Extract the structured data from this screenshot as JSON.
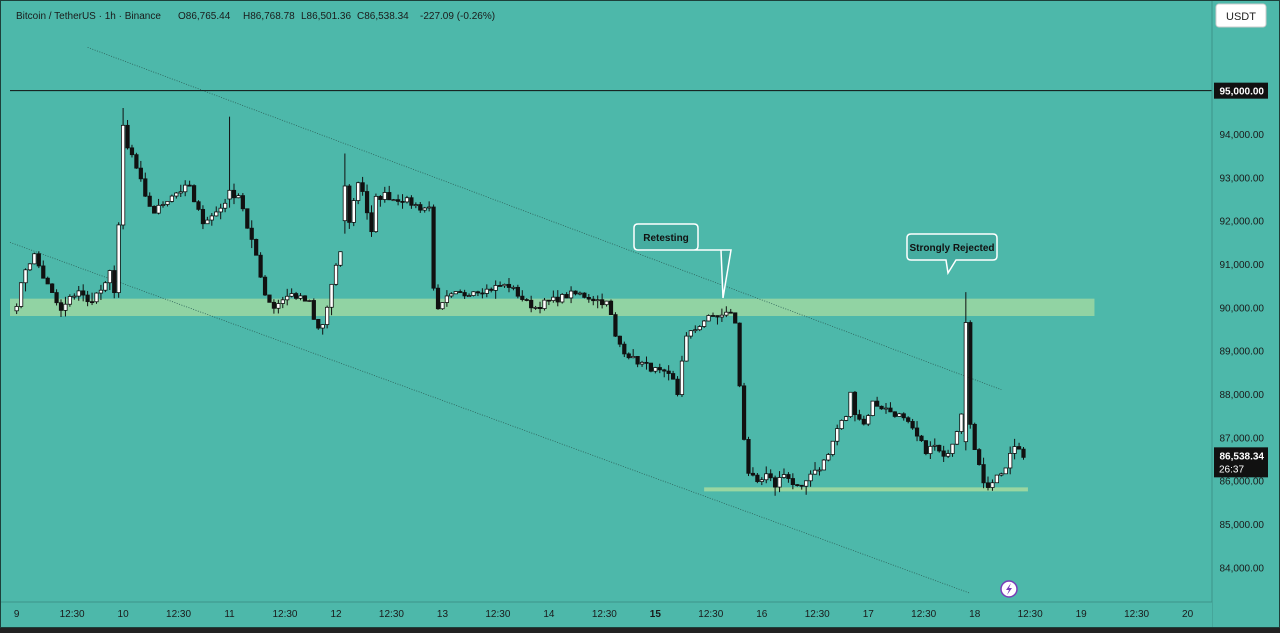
{
  "header": {
    "symbol": "Bitcoin / TetherUS",
    "interval": "1h",
    "exchange": "Binance",
    "open": "O86,765.44",
    "high": "H86,768.78",
    "low": "L86,501.36",
    "close": "C86,538.34",
    "change": "-227.09 (-0.26%)"
  },
  "currency_button": "USDT",
  "colors": {
    "background": "#4db8aa",
    "zone": "#a8dca0",
    "candle": "#111111",
    "candle_up_body": "#ffffff",
    "axis_bg": "#4db8aa",
    "callout_bg": "#45aca0"
  },
  "annotations": {
    "retesting": "Retesting",
    "strongly_rejected": "Strongly Rejected"
  },
  "price_line": {
    "value": 95000,
    "label": "95,000.00"
  },
  "last_price": {
    "value": 86538.34,
    "label": "86,538.34",
    "countdown": "26:37"
  },
  "chart_data": {
    "type": "candlestick",
    "instrument": "Bitcoin / TetherUS",
    "interval": "1h",
    "ylim": [
      83200,
      96400
    ],
    "y_ticks": [
      {
        "value": 94000,
        "label": "94,000.00"
      },
      {
        "value": 93000,
        "label": "93,000.00"
      },
      {
        "value": 92000,
        "label": "92,000.00"
      },
      {
        "value": 91000,
        "label": "91,000.00"
      },
      {
        "value": 90000,
        "label": "90,000.00"
      },
      {
        "value": 89000,
        "label": "89,000.00"
      },
      {
        "value": 88000,
        "label": "88,000.00"
      },
      {
        "value": 87000,
        "label": "87,000.00"
      },
      {
        "value": 86000,
        "label": "86,000.00"
      },
      {
        "value": 85000,
        "label": "85,000.00"
      },
      {
        "value": 84000,
        "label": "84,000.00"
      }
    ],
    "x_ticks": [
      {
        "t": 0,
        "label": "9",
        "bold": false
      },
      {
        "t": 12.5,
        "label": "12:30",
        "bold": false
      },
      {
        "t": 24,
        "label": "10",
        "bold": false
      },
      {
        "t": 36.5,
        "label": "12:30",
        "bold": false
      },
      {
        "t": 48,
        "label": "11",
        "bold": false
      },
      {
        "t": 60.5,
        "label": "12:30",
        "bold": false
      },
      {
        "t": 72,
        "label": "12",
        "bold": false
      },
      {
        "t": 84.5,
        "label": "12:30",
        "bold": false
      },
      {
        "t": 96,
        "label": "13",
        "bold": false
      },
      {
        "t": 108.5,
        "label": "12:30",
        "bold": false
      },
      {
        "t": 120,
        "label": "14",
        "bold": false
      },
      {
        "t": 132.5,
        "label": "12:30",
        "bold": false
      },
      {
        "t": 144,
        "label": "15",
        "bold": true
      },
      {
        "t": 156.5,
        "label": "12:30",
        "bold": false
      },
      {
        "t": 168,
        "label": "16",
        "bold": false
      },
      {
        "t": 180.5,
        "label": "12:30",
        "bold": false
      },
      {
        "t": 192,
        "label": "17",
        "bold": false
      },
      {
        "t": 204.5,
        "label": "12:30",
        "bold": false
      },
      {
        "t": 216,
        "label": "18",
        "bold": false
      },
      {
        "t": 228.5,
        "label": "12:30",
        "bold": false
      },
      {
        "t": 240,
        "label": "19",
        "bold": false
      },
      {
        "t": 252.5,
        "label": "12:30",
        "bold": false
      },
      {
        "t": 264,
        "label": "20",
        "bold": false
      }
    ],
    "xlim": [
      -1.5,
      269.5
    ],
    "resistance_zone": {
      "from": 89800,
      "to": 90200,
      "t_start": -1.5,
      "t_end": 243
    },
    "support_line": {
      "value": 85800,
      "t_start": 155,
      "t_end": 228
    },
    "channel_upper": [
      {
        "t": 16,
        "y": 96000
      },
      {
        "t": 222,
        "y": 88100
      }
    ],
    "channel_lower": [
      {
        "t": -1.5,
        "y": 91500
      },
      {
        "t": 215,
        "y": 83400
      }
    ],
    "waypoints": [
      [
        0,
        90100
      ],
      [
        2,
        90900
      ],
      [
        4,
        91200
      ],
      [
        6,
        90700
      ],
      [
        8,
        90300
      ],
      [
        10,
        89900
      ],
      [
        12,
        90200
      ],
      [
        14,
        90400
      ],
      [
        16,
        90100
      ],
      [
        18,
        90300
      ],
      [
        20,
        90500
      ],
      [
        21,
        90800
      ],
      [
        22,
        90400
      ],
      [
        23,
        91900
      ],
      [
        24,
        93800
      ],
      [
        26,
        93500
      ],
      [
        28,
        92900
      ],
      [
        29,
        92500
      ],
      [
        31,
        92200
      ],
      [
        33,
        92400
      ],
      [
        35,
        92600
      ],
      [
        37,
        92700
      ],
      [
        39,
        92800
      ],
      [
        40,
        92400
      ],
      [
        42,
        92000
      ],
      [
        44,
        92100
      ],
      [
        46,
        92300
      ],
      [
        48,
        92600
      ],
      [
        50,
        92600
      ],
      [
        51,
        92300
      ],
      [
        52,
        91800
      ],
      [
        54,
        91200
      ],
      [
        56,
        90300
      ],
      [
        58,
        90000
      ],
      [
        60,
        90200
      ],
      [
        62,
        90300
      ],
      [
        64,
        90200
      ],
      [
        66,
        90100
      ],
      [
        67,
        89700
      ],
      [
        68,
        89500
      ],
      [
        69,
        89600
      ],
      [
        70,
        90000
      ],
      [
        71,
        90500
      ],
      [
        73,
        91300
      ],
      [
        75,
        92000
      ],
      [
        77,
        92900
      ],
      [
        78,
        92700
      ],
      [
        79,
        92200
      ],
      [
        80,
        91700
      ],
      [
        81,
        92500
      ],
      [
        83,
        92600
      ],
      [
        85,
        92500
      ],
      [
        87,
        92500
      ],
      [
        89,
        92400
      ],
      [
        91,
        92300
      ],
      [
        92,
        92300
      ],
      [
        93,
        92300
      ],
      [
        94,
        90500
      ],
      [
        95,
        89900
      ],
      [
        97,
        90200
      ],
      [
        99,
        90300
      ],
      [
        101,
        90300
      ],
      [
        103,
        90400
      ],
      [
        106,
        90400
      ],
      [
        109,
        90500
      ],
      [
        111,
        90500
      ],
      [
        113,
        90300
      ],
      [
        115,
        90100
      ],
      [
        117,
        90000
      ],
      [
        119,
        90100
      ],
      [
        122,
        90200
      ],
      [
        125,
        90300
      ],
      [
        127,
        90300
      ],
      [
        130,
        90200
      ],
      [
        133,
        90100
      ],
      [
        134,
        89800
      ],
      [
        135,
        89300
      ],
      [
        137,
        89000
      ],
      [
        139,
        88800
      ],
      [
        141,
        88700
      ],
      [
        143,
        88600
      ],
      [
        145,
        88500
      ],
      [
        147,
        88400
      ],
      [
        148,
        88300
      ],
      [
        149,
        88000
      ],
      [
        150,
        88800
      ],
      [
        151,
        89300
      ],
      [
        153,
        89500
      ],
      [
        155,
        89700
      ],
      [
        157,
        89800
      ],
      [
        159,
        89800
      ],
      [
        161,
        89900
      ],
      [
        162,
        89600
      ],
      [
        163,
        88200
      ],
      [
        164,
        87000
      ],
      [
        165,
        86200
      ],
      [
        167,
        85900
      ],
      [
        169,
        86100
      ],
      [
        171,
        85900
      ],
      [
        173,
        86200
      ],
      [
        175,
        85900
      ],
      [
        177,
        85800
      ],
      [
        179,
        86200
      ],
      [
        181,
        86300
      ],
      [
        183,
        86600
      ],
      [
        185,
        87200
      ],
      [
        187,
        87500
      ],
      [
        188,
        88000
      ],
      [
        189,
        87600
      ],
      [
        191,
        87300
      ],
      [
        193,
        87800
      ],
      [
        195,
        87700
      ],
      [
        197,
        87600
      ],
      [
        199,
        87500
      ],
      [
        201,
        87300
      ],
      [
        203,
        87000
      ],
      [
        205,
        86700
      ],
      [
        207,
        86800
      ],
      [
        209,
        86500
      ],
      [
        211,
        86900
      ],
      [
        212,
        87200
      ],
      [
        213,
        87600
      ],
      [
        214,
        89700
      ],
      [
        215,
        87300
      ],
      [
        216,
        86700
      ],
      [
        217,
        86300
      ],
      [
        218,
        86000
      ],
      [
        219,
        85900
      ],
      [
        221,
        86100
      ],
      [
        223,
        86300
      ],
      [
        225,
        86800
      ],
      [
        226,
        86700
      ],
      [
        227,
        86538
      ]
    ],
    "special_candles": [
      {
        "t": 214,
        "open": 86900,
        "high": 90350,
        "low": 86700,
        "close": 89650
      },
      {
        "t": 215,
        "open": 89650,
        "high": 89700,
        "low": 87200,
        "close": 87300
      },
      {
        "t": 24,
        "open": 91900,
        "high": 94600,
        "low": 91800,
        "close": 94200
      },
      {
        "t": 48,
        "open": 92500,
        "high": 94400,
        "low": 92300,
        "close": 92700
      },
      {
        "t": 74,
        "open": 92000,
        "high": 93550,
        "low": 91700,
        "close": 92800
      }
    ]
  }
}
